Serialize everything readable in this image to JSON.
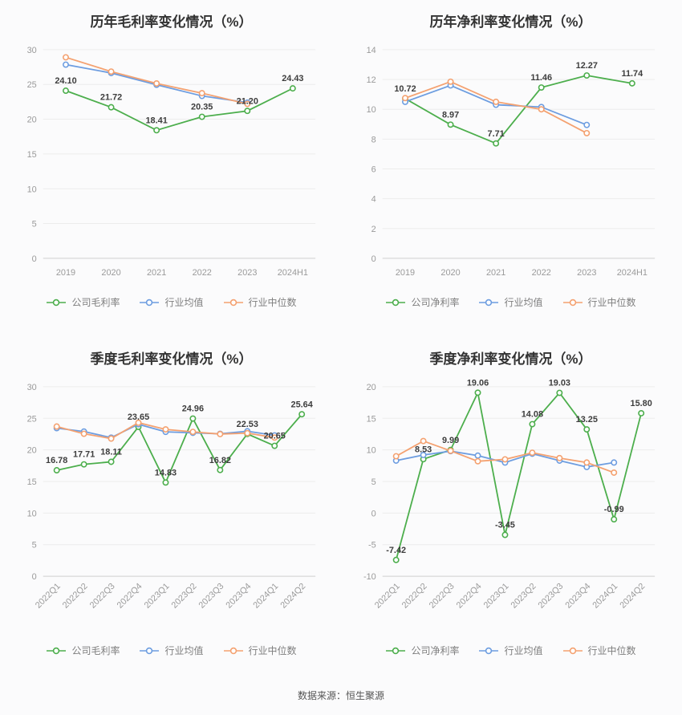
{
  "footer": {
    "source": "数据来源：恒生聚源"
  },
  "colors": {
    "company": "#4cae4c",
    "industry_mean": "#6d9de0",
    "industry_median": "#f4a170"
  },
  "chart_data": [
    {
      "type": "line",
      "title": "历年毛利率变化情况（%）",
      "categories": [
        "2019",
        "2020",
        "2021",
        "2022",
        "2023",
        "2024H1"
      ],
      "yticks": [
        0,
        5,
        10,
        15,
        20,
        25,
        30
      ],
      "rotate_labels": false,
      "legend_position": "bottom",
      "grid": true,
      "series": [
        {
          "name": "公司毛利率",
          "color": "company",
          "show_labels": true,
          "values": [
            24.1,
            21.72,
            18.41,
            20.35,
            21.2,
            24.43
          ]
        },
        {
          "name": "行业均值",
          "color": "industry_mean",
          "values": [
            27.85,
            26.65,
            24.95,
            23.35,
            22.4,
            null
          ]
        },
        {
          "name": "行业中位数",
          "color": "industry_median",
          "values": [
            28.9,
            26.85,
            25.15,
            23.75,
            22.2,
            null
          ]
        }
      ]
    },
    {
      "type": "line",
      "title": "历年净利率变化情况（%）",
      "categories": [
        "2019",
        "2020",
        "2021",
        "2022",
        "2023",
        "2024H1"
      ],
      "yticks": [
        0,
        2,
        4,
        6,
        8,
        10,
        12,
        14
      ],
      "rotate_labels": false,
      "legend_position": "bottom",
      "grid": true,
      "series": [
        {
          "name": "公司净利率",
          "color": "company",
          "show_labels": true,
          "values": [
            10.72,
            8.97,
            7.71,
            11.46,
            12.27,
            11.74
          ]
        },
        {
          "name": "行业均值",
          "color": "industry_mean",
          "values": [
            10.5,
            11.6,
            10.3,
            10.15,
            8.95,
            null
          ]
        },
        {
          "name": "行业中位数",
          "color": "industry_median",
          "values": [
            10.75,
            11.85,
            10.5,
            10.0,
            8.4,
            null
          ]
        }
      ]
    },
    {
      "type": "line",
      "title": "季度毛利率变化情况（%）",
      "categories": [
        "2022Q1",
        "2022Q2",
        "2022Q3",
        "2022Q4",
        "2023Q1",
        "2023Q2",
        "2023Q3",
        "2023Q4",
        "2024Q1",
        "2024Q2"
      ],
      "yticks": [
        0,
        5,
        10,
        15,
        20,
        25,
        30
      ],
      "rotate_labels": true,
      "legend_position": "bottom",
      "grid": true,
      "series": [
        {
          "name": "公司毛利率",
          "color": "company",
          "show_labels": true,
          "values": [
            16.78,
            17.71,
            18.11,
            23.65,
            14.83,
            24.96,
            16.82,
            22.53,
            20.65,
            25.64
          ]
        },
        {
          "name": "行业均值",
          "color": "industry_mean",
          "values": [
            23.45,
            22.9,
            21.95,
            24.05,
            22.85,
            22.7,
            22.55,
            22.95,
            22.3,
            null
          ]
        },
        {
          "name": "行业中位数",
          "color": "industry_median",
          "values": [
            23.7,
            22.55,
            21.8,
            24.3,
            23.25,
            22.85,
            22.5,
            22.65,
            21.95,
            null
          ]
        }
      ]
    },
    {
      "type": "line",
      "title": "季度净利率变化情况（%）",
      "categories": [
        "2022Q1",
        "2022Q2",
        "2022Q3",
        "2022Q4",
        "2023Q1",
        "2023Q2",
        "2023Q3",
        "2023Q4",
        "2024Q1",
        "2024Q2"
      ],
      "yticks": [
        -10,
        -5,
        0,
        5,
        10,
        15,
        20
      ],
      "rotate_labels": true,
      "legend_position": "bottom",
      "grid": true,
      "series": [
        {
          "name": "公司净利率",
          "color": "company",
          "show_labels": true,
          "values": [
            -7.42,
            8.53,
            9.99,
            19.06,
            -3.45,
            14.08,
            19.03,
            13.25,
            -0.99,
            15.8
          ]
        },
        {
          "name": "行业均值",
          "color": "industry_mean",
          "values": [
            8.3,
            9.2,
            9.8,
            9.1,
            8.0,
            9.4,
            8.3,
            7.3,
            8.0,
            null
          ]
        },
        {
          "name": "行业中位数",
          "color": "industry_median",
          "values": [
            9.0,
            11.4,
            9.85,
            8.2,
            8.5,
            9.55,
            8.7,
            8.0,
            6.4,
            null
          ]
        }
      ]
    }
  ]
}
